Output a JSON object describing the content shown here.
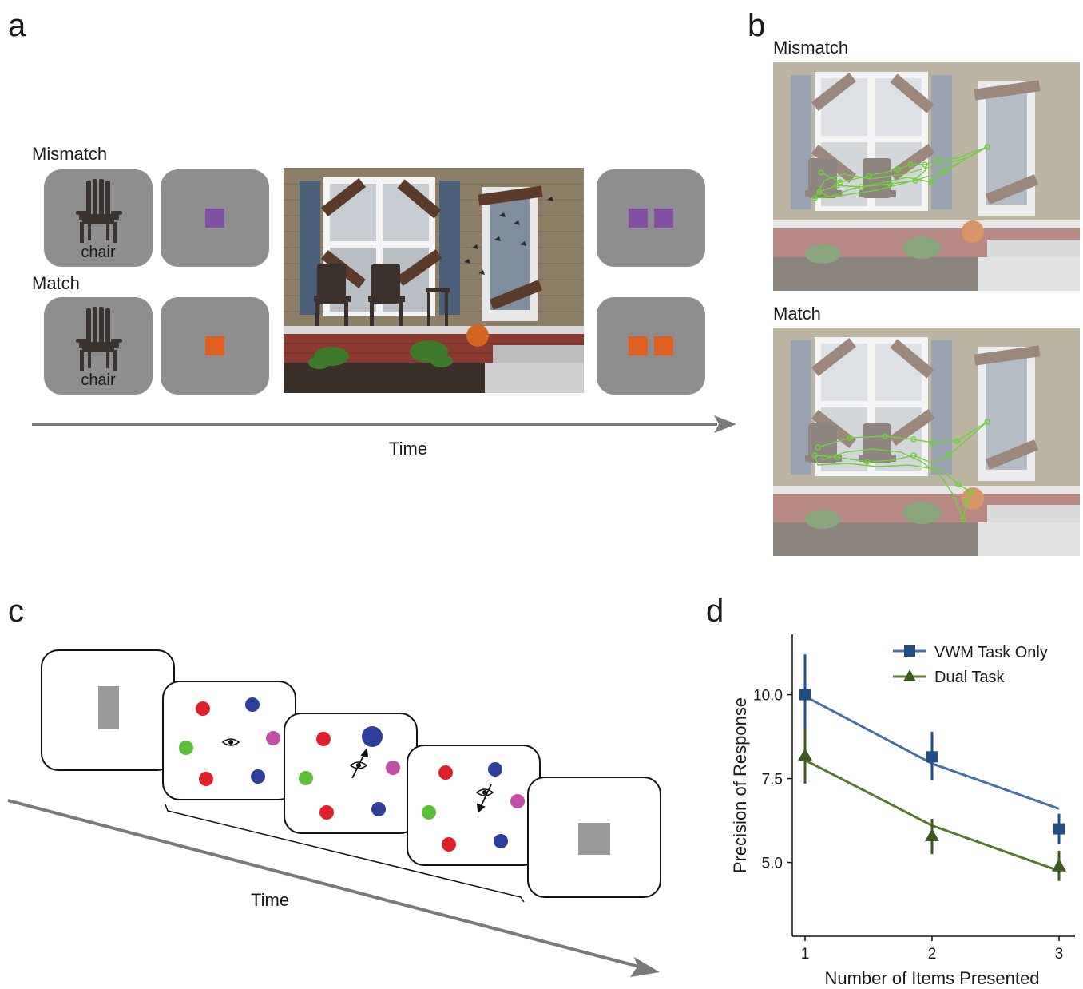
{
  "panel_a": {
    "letter": "a",
    "row1_label": "Mismatch",
    "row2_label": "Match",
    "cue_word": "chair",
    "time_label": "Time",
    "mismatch_color": "#7e4fa3",
    "match_color": "#e0601f"
  },
  "panel_b": {
    "letter": "b",
    "top_label": "Mismatch",
    "bottom_label": "Match",
    "scanpath_color": "#6fd03a"
  },
  "panel_c": {
    "letter": "c",
    "time_label": "Time",
    "dot_colors": {
      "red": "#e0202a",
      "blue": "#2e3f9a",
      "green": "#5cbf3a",
      "magenta": "#c24fa5"
    },
    "cue_color": "#9a9a9a"
  },
  "panel_d": {
    "letter": "d"
  },
  "chart_data": {
    "type": "line",
    "xlabel": "Number of Items Presented",
    "ylabel": "Precision of Response",
    "x": [
      1,
      2,
      3
    ],
    "x_ticks": [
      "1",
      "2",
      "3"
    ],
    "y_ticks": [
      "5.0",
      "7.5",
      "10.0"
    ],
    "ylim": [
      2.8,
      11.8
    ],
    "legend_position": "top-right",
    "series": [
      {
        "name": "VWM Task Only",
        "marker": "square",
        "color": "#1f4f86",
        "line_color": "#4a6fa5",
        "points": [
          10.0,
          8.15,
          6.0
        ],
        "err_low": [
          8.6,
          7.45,
          5.55
        ],
        "err_high": [
          11.2,
          8.9,
          6.45
        ],
        "fit": [
          9.95,
          7.95,
          6.6
        ]
      },
      {
        "name": "Dual Task",
        "marker": "triangle",
        "color": "#3c5a1e",
        "line_color": "#587a30",
        "points": [
          8.2,
          5.8,
          4.9
        ],
        "err_low": [
          7.35,
          5.25,
          4.45
        ],
        "err_high": [
          9.0,
          6.3,
          5.35
        ],
        "fit": [
          8.05,
          6.1,
          4.75
        ]
      }
    ]
  }
}
